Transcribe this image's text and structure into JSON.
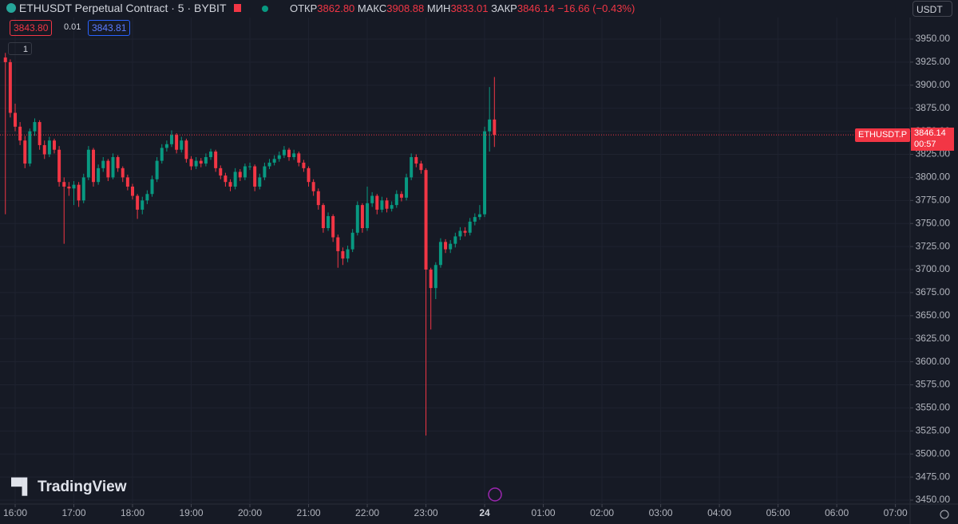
{
  "header": {
    "symbol": "ETHUSDT Perpetual Contract · 5 · BYBIT",
    "open_label": "ОТКР",
    "open": "3862.80",
    "high_label": "МАКС",
    "high": "3908.88",
    "low_label": "МИН",
    "low": "3833.01",
    "close_label": "ЗАКР",
    "close": "3846.14",
    "change": "−16.66 (−0.43%)",
    "currency": "USDT",
    "bid": "3843.80",
    "spread": "0.01",
    "ask": "3843.81",
    "indicator_count": "1",
    "brand": "TradingView",
    "symbol_tag": "ETHUSDT.P",
    "countdown": "00:57"
  },
  "chart_data": {
    "type": "candlestick",
    "up_color": "#089981",
    "down_color": "#f23645",
    "grid": true,
    "xlim": [
      944.5,
      1875
    ],
    "xticks": [
      {
        "value": 960,
        "label": "16:00"
      },
      {
        "value": 1020,
        "label": "17:00"
      },
      {
        "value": 1080,
        "label": "18:00"
      },
      {
        "value": 1140,
        "label": "19:00"
      },
      {
        "value": 1200,
        "label": "20:00"
      },
      {
        "value": 1260,
        "label": "21:00"
      },
      {
        "value": 1320,
        "label": "22:00"
      },
      {
        "value": 1380,
        "label": "23:00"
      },
      {
        "value": 1440,
        "label": "24"
      },
      {
        "value": 1500,
        "label": "01:00"
      },
      {
        "value": 1560,
        "label": "02:00"
      },
      {
        "value": 1620,
        "label": "03:00"
      },
      {
        "value": 1680,
        "label": "04:00"
      },
      {
        "value": 1740,
        "label": "05:00"
      },
      {
        "value": 1800,
        "label": "06:00"
      },
      {
        "value": 1860,
        "label": "07:00"
      }
    ],
    "ylim": [
      3445.7,
      3992.4
    ],
    "yticks": [
      {
        "value": 3450,
        "label": "3450.00"
      },
      {
        "value": 3475,
        "label": "3475.00"
      },
      {
        "value": 3500,
        "label": "3500.00"
      },
      {
        "value": 3525,
        "label": "3525.00"
      },
      {
        "value": 3550,
        "label": "3550.00"
      },
      {
        "value": 3575,
        "label": "3575.00"
      },
      {
        "value": 3600,
        "label": "3600.00"
      },
      {
        "value": 3625,
        "label": "3625.00"
      },
      {
        "value": 3650,
        "label": "3650.00"
      },
      {
        "value": 3675,
        "label": "3675.00"
      },
      {
        "value": 3700,
        "label": "3700.00"
      },
      {
        "value": 3725,
        "label": "3725.00"
      },
      {
        "value": 3750,
        "label": "3750.00"
      },
      {
        "value": 3775,
        "label": "3775.00"
      },
      {
        "value": 3800,
        "label": "3800.00"
      },
      {
        "value": 3825,
        "label": "3825.00"
      },
      {
        "value": 3850,
        "label": "3850.00"
      },
      {
        "value": 3875,
        "label": "3875.00"
      },
      {
        "value": 3900,
        "label": "3900.00"
      },
      {
        "value": 3925,
        "label": "3925.00"
      },
      {
        "value": 3950,
        "label": "3950.00"
      }
    ],
    "x": [
      950,
      955,
      960,
      965,
      970,
      975,
      980,
      985,
      990,
      995,
      1000,
      1005,
      1010,
      1015,
      1020,
      1025,
      1030,
      1035,
      1040,
      1045,
      1050,
      1055,
      1060,
      1065,
      1070,
      1075,
      1080,
      1085,
      1090,
      1095,
      1100,
      1105,
      1110,
      1115,
      1120,
      1125,
      1130,
      1135,
      1140,
      1145,
      1150,
      1155,
      1160,
      1165,
      1170,
      1175,
      1180,
      1185,
      1190,
      1195,
      1200,
      1205,
      1210,
      1215,
      1220,
      1225,
      1230,
      1235,
      1240,
      1245,
      1250,
      1255,
      1260,
      1265,
      1270,
      1275,
      1280,
      1285,
      1290,
      1295,
      1300,
      1305,
      1310,
      1315,
      1320,
      1325,
      1330,
      1335,
      1340,
      1345,
      1350,
      1355,
      1360,
      1365,
      1370,
      1375,
      1380,
      1385,
      1390,
      1395,
      1400,
      1405,
      1410,
      1415,
      1420,
      1425,
      1430,
      1435,
      1440,
      1445,
      1450
    ],
    "open": [
      3930,
      3925,
      3870,
      3855,
      3840,
      3815,
      3850,
      3860,
      3835,
      3825,
      3840,
      3830,
      3795,
      3790,
      3788,
      3792,
      3775,
      3800,
      3830,
      3795,
      3810,
      3818,
      3800,
      3822,
      3810,
      3800,
      3790,
      3780,
      3765,
      3775,
      3782,
      3798,
      3818,
      3832,
      3836,
      3846,
      3830,
      3840,
      3820,
      3812,
      3818,
      3815,
      3822,
      3828,
      3810,
      3802,
      3795,
      3790,
      3806,
      3800,
      3812,
      3812,
      3790,
      3800,
      3812,
      3816,
      3820,
      3824,
      3830,
      3822,
      3826,
      3816,
      3810,
      3795,
      3785,
      3770,
      3745,
      3758,
      3735,
      3720,
      3712,
      3722,
      3740,
      3770,
      3745,
      3772,
      3780,
      3765,
      3775,
      3766,
      3770,
      3782,
      3778,
      3800,
      3822,
      3815,
      3808,
      3700,
      3680,
      3705,
      3730,
      3722,
      3728,
      3736,
      3742,
      3740,
      3752,
      3757,
      3760,
      3850,
      3862.8
    ],
    "high": [
      3935,
      3928,
      3880,
      3860,
      3845,
      3853,
      3864,
      3862,
      3840,
      3844,
      3842,
      3834,
      3800,
      3795,
      3796,
      3795,
      3804,
      3834,
      3832,
      3814,
      3822,
      3820,
      3826,
      3824,
      3812,
      3803,
      3793,
      3782,
      3779,
      3786,
      3802,
      3822,
      3836,
      3840,
      3851,
      3848,
      3844,
      3842,
      3823,
      3822,
      3821,
      3826,
      3831,
      3830,
      3813,
      3805,
      3798,
      3810,
      3809,
      3815,
      3816,
      3814,
      3804,
      3816,
      3820,
      3824,
      3828,
      3834,
      3832,
      3830,
      3828,
      3819,
      3812,
      3798,
      3788,
      3772,
      3762,
      3760,
      3738,
      3724,
      3726,
      3744,
      3774,
      3772,
      3790,
      3784,
      3782,
      3779,
      3778,
      3774,
      3786,
      3785,
      3804,
      3826,
      3825,
      3818,
      3810,
      3702,
      3708,
      3734,
      3733,
      3732,
      3740,
      3746,
      3746,
      3756,
      3761,
      3770,
      3855,
      3898,
      3908.88
    ],
    "low": [
      3760,
      3865,
      3850,
      3835,
      3810,
      3812,
      3845,
      3830,
      3820,
      3822,
      3826,
      3790,
      3728,
      3780,
      3770,
      3768,
      3772,
      3797,
      3790,
      3792,
      3806,
      3796,
      3798,
      3806,
      3795,
      3786,
      3776,
      3755,
      3760,
      3771,
      3779,
      3795,
      3815,
      3828,
      3833,
      3826,
      3827,
      3816,
      3808,
      3809,
      3811,
      3812,
      3819,
      3806,
      3798,
      3790,
      3785,
      3787,
      3796,
      3797,
      3808,
      3785,
      3787,
      3797,
      3809,
      3813,
      3817,
      3821,
      3818,
      3819,
      3812,
      3806,
      3790,
      3780,
      3765,
      3740,
      3742,
      3730,
      3702,
      3705,
      3708,
      3719,
      3737,
      3740,
      3742,
      3768,
      3760,
      3762,
      3762,
      3763,
      3767,
      3774,
      3775,
      3797,
      3811,
      3804,
      3520,
      3635,
      3668,
      3702,
      3718,
      3718,
      3724,
      3732,
      3736,
      3737,
      3748,
      3754,
      3757,
      3828,
      3833.01
    ],
    "close": [
      3925,
      3870,
      3855,
      3840,
      3815,
      3850,
      3860,
      3835,
      3825,
      3840,
      3830,
      3795,
      3790,
      3788,
      3792,
      3775,
      3800,
      3830,
      3795,
      3810,
      3818,
      3800,
      3822,
      3810,
      3800,
      3790,
      3780,
      3765,
      3775,
      3782,
      3798,
      3818,
      3832,
      3836,
      3846,
      3830,
      3840,
      3820,
      3812,
      3818,
      3815,
      3822,
      3828,
      3810,
      3802,
      3795,
      3790,
      3806,
      3800,
      3812,
      3812,
      3790,
      3800,
      3812,
      3816,
      3820,
      3824,
      3830,
      3822,
      3826,
      3816,
      3810,
      3795,
      3785,
      3770,
      3745,
      3758,
      3735,
      3720,
      3712,
      3722,
      3740,
      3770,
      3745,
      3772,
      3780,
      3765,
      3775,
      3766,
      3770,
      3782,
      3778,
      3800,
      3822,
      3815,
      3808,
      3700,
      3680,
      3705,
      3730,
      3722,
      3728,
      3736,
      3742,
      3740,
      3752,
      3757,
      3760,
      3850,
      3862.8,
      3846.14
    ]
  }
}
